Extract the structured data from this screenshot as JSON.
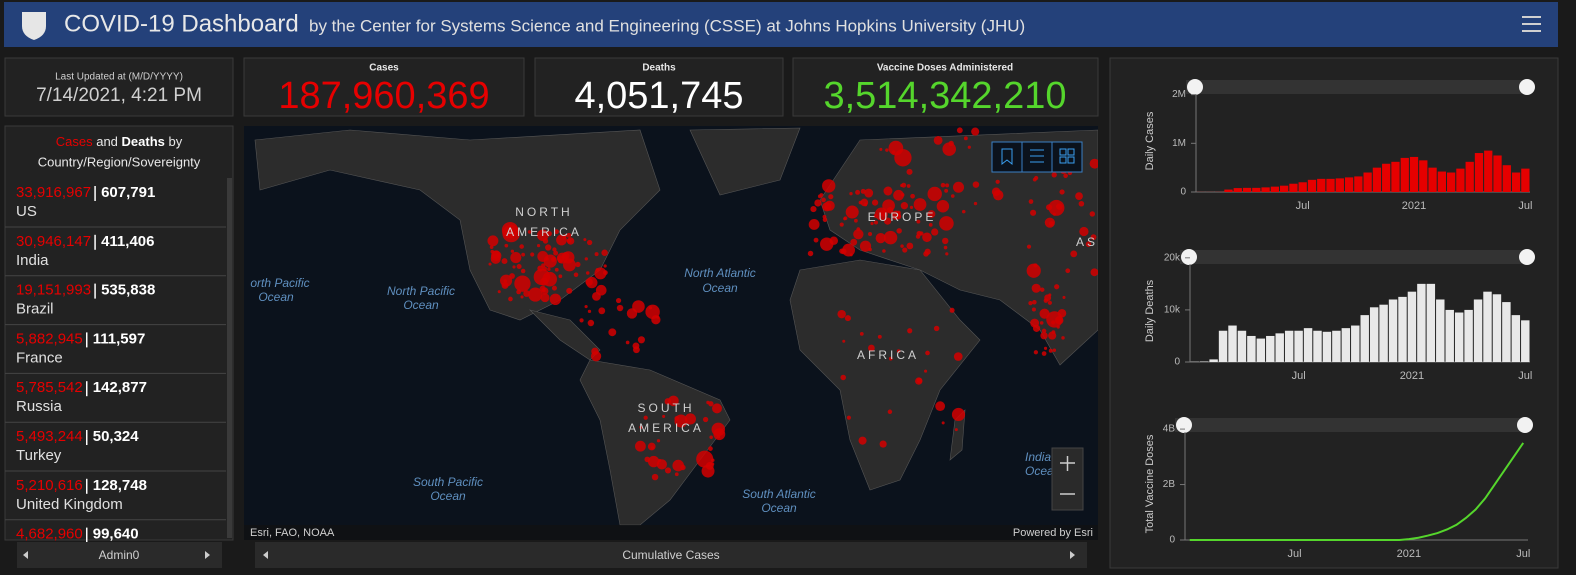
{
  "header": {
    "title": "COVID-19 Dashboard",
    "subtitle": "by the Center for Systems Science and Engineering (CSSE) at Johns Hopkins University (JHU)"
  },
  "updated": {
    "label": "Last Updated at (M/D/YYYY)",
    "value": "7/14/2021, 4:21 PM"
  },
  "stats": [
    {
      "label": "Cases",
      "value": "187,960,369",
      "color": "#e60000"
    },
    {
      "label": "Deaths",
      "value": "4,051,745",
      "color": "#ffffff"
    },
    {
      "label": "Vaccine Doses Administered",
      "value": "3,514,342,210",
      "color": "#55d62c"
    }
  ],
  "list": {
    "title": [
      "Cases",
      "and",
      "Deaths",
      "by",
      "Country/Region/Sovereignty"
    ],
    "rows": [
      {
        "cases": "33,916,967",
        "deaths": "607,791",
        "name": "US"
      },
      {
        "cases": "30,946,147",
        "deaths": "411,406",
        "name": "India"
      },
      {
        "cases": "19,151,993",
        "deaths": "535,838",
        "name": "Brazil"
      },
      {
        "cases": "5,882,945",
        "deaths": "111,597",
        "name": "France"
      },
      {
        "cases": "5,785,542",
        "deaths": "142,877",
        "name": "Russia"
      },
      {
        "cases": "5,493,244",
        "deaths": "50,324",
        "name": "Turkey"
      },
      {
        "cases": "5,210,616",
        "deaths": "128,748",
        "name": "United Kingdom"
      },
      {
        "cases": "4,682,960",
        "deaths": "99,640"
      }
    ],
    "tab": "Admin0"
  },
  "map": {
    "labels": [
      [
        "NORTH",
        "AMERICA"
      ],
      [
        "EUROPE"
      ],
      [
        "AS"
      ],
      [
        "AFRICA"
      ],
      [
        "SOUTH",
        "AMERICA"
      ],
      [
        "orth Pacific",
        "Ocean"
      ],
      [
        "North Pacific",
        "Ocean"
      ],
      [
        "North Atlantic",
        "Ocean"
      ],
      [
        "South Pacific",
        "Ocean"
      ],
      [
        "South Atlantic",
        "Ocean"
      ],
      [
        "India",
        "Ocea"
      ]
    ],
    "attribution": "Esri, FAO, NOAA",
    "powered": "Powered by Esri",
    "tab": "Cumulative Cases"
  },
  "chart_data": [
    {
      "type": "bar",
      "ylabel": "Daily Cases",
      "color": "#e60000",
      "categories": [
        null,
        null,
        null,
        null,
        null,
        null,
        null,
        null,
        null,
        null,
        null,
        "Jul",
        null,
        null,
        null,
        null,
        null,
        null,
        null,
        null,
        null,
        null,
        null,
        "2021",
        null,
        null,
        null,
        null,
        null,
        null,
        null,
        null,
        null,
        null,
        null,
        "Jul"
      ],
      "values": [
        2000,
        2000,
        3000,
        50000,
        80000,
        85000,
        85000,
        95000,
        110000,
        130000,
        170000,
        200000,
        250000,
        270000,
        270000,
        280000,
        300000,
        320000,
        400000,
        500000,
        580000,
        620000,
        700000,
        720000,
        650000,
        500000,
        420000,
        400000,
        480000,
        620000,
        800000,
        850000,
        750000,
        550000,
        400000,
        480000
      ],
      "ylim": [
        0,
        2300000
      ],
      "yticks": [
        0,
        {
          "value": 1000000,
          "label": "1M"
        },
        {
          "value": 2000000,
          "label": "2M"
        }
      ]
    },
    {
      "type": "bar",
      "ylabel": "Daily Deaths",
      "color": "#e8e8e8",
      "categories": [
        null,
        null,
        null,
        null,
        null,
        null,
        null,
        null,
        null,
        null,
        null,
        "Jul",
        null,
        null,
        null,
        null,
        null,
        null,
        null,
        null,
        null,
        null,
        null,
        "2021",
        null,
        null,
        null,
        null,
        null,
        null,
        null,
        null,
        null,
        null,
        null,
        "Jul"
      ],
      "values": [
        50,
        100,
        500,
        6000,
        7000,
        6000,
        5000,
        4500,
        5000,
        5500,
        6000,
        6000,
        6500,
        6000,
        5800,
        6000,
        6500,
        7000,
        9000,
        10500,
        11000,
        12000,
        12500,
        13500,
        15000,
        15000,
        12000,
        10000,
        9500,
        10000,
        12000,
        13500,
        13000,
        11500,
        9000,
        8000
      ],
      "ylim": [
        0,
        21500
      ],
      "yticks": [
        0,
        {
          "value": 10000,
          "label": "10k"
        },
        {
          "value": 20000,
          "label": "20k"
        }
      ]
    },
    {
      "type": "line",
      "ylabel": "Total Vaccine Doses",
      "color": "#55d62c",
      "categories": [
        null,
        null,
        null,
        null,
        null,
        null,
        null,
        null,
        null,
        null,
        null,
        "Jul",
        null,
        null,
        null,
        null,
        null,
        null,
        null,
        null,
        null,
        null,
        null,
        "2021",
        null,
        null,
        null,
        null,
        null,
        null,
        null,
        null,
        null,
        null,
        null,
        "Jul"
      ],
      "values": [
        0,
        0,
        0,
        0,
        0,
        0,
        0,
        0,
        0,
        0,
        0,
        0,
        0,
        0,
        0,
        0,
        0,
        0,
        0,
        0,
        0,
        0,
        0,
        30000000,
        80000000,
        160000000,
        250000000,
        380000000,
        550000000,
        800000000,
        1100000000,
        1500000000,
        2000000000,
        2500000000,
        3000000000,
        3500000000
      ],
      "ylim": [
        0,
        4400000000
      ],
      "yticks": [
        0,
        {
          "value": 2000000000,
          "label": "2B"
        },
        {
          "value": 4000000000,
          "label": "4B"
        }
      ]
    }
  ]
}
